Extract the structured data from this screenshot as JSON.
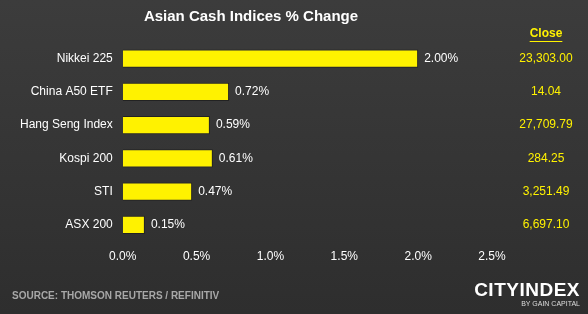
{
  "chart_data": {
    "type": "bar",
    "title": "Asian Cash Indices % Change",
    "orientation": "horizontal",
    "categories": [
      "Nikkei 225",
      "China A50 ETF",
      "Hang Seng Index",
      "Kospi 200",
      "STI",
      "ASX 200"
    ],
    "values": [
      2.0,
      0.72,
      0.59,
      0.61,
      0.47,
      0.15
    ],
    "value_labels": [
      "2.00%",
      "0.72%",
      "0.59%",
      "0.61%",
      "0.47%",
      "0.15%"
    ],
    "data_labels": true,
    "color": "#fff200",
    "grid": false,
    "xlim": [
      0,
      2.5
    ],
    "xticks": [
      {
        "value": 0,
        "label": "0.0%"
      },
      {
        "value": 0.5,
        "label": "0.5%"
      },
      {
        "value": 1,
        "label": "1.0%"
      },
      {
        "value": 1.5,
        "label": "1.5%"
      },
      {
        "value": 2,
        "label": "2.0%"
      },
      {
        "value": 2.5,
        "label": "2.5%"
      }
    ],
    "annotations": {
      "close": {
        "title": "Close",
        "values": [
          23303.0,
          14.04,
          27709.79,
          284.25,
          3251.49,
          6697.1
        ],
        "value_labels": [
          "23,303.00",
          "14.04",
          "27,709.79",
          "284.25",
          "3,251.49",
          "6,697.10"
        ]
      },
      "source": "SOURCE: THOMSON REUTERS / REFINITIV",
      "logo": {
        "text": "CITYINDEX",
        "subtext": "BY GAIN CAPITAL"
      }
    }
  }
}
